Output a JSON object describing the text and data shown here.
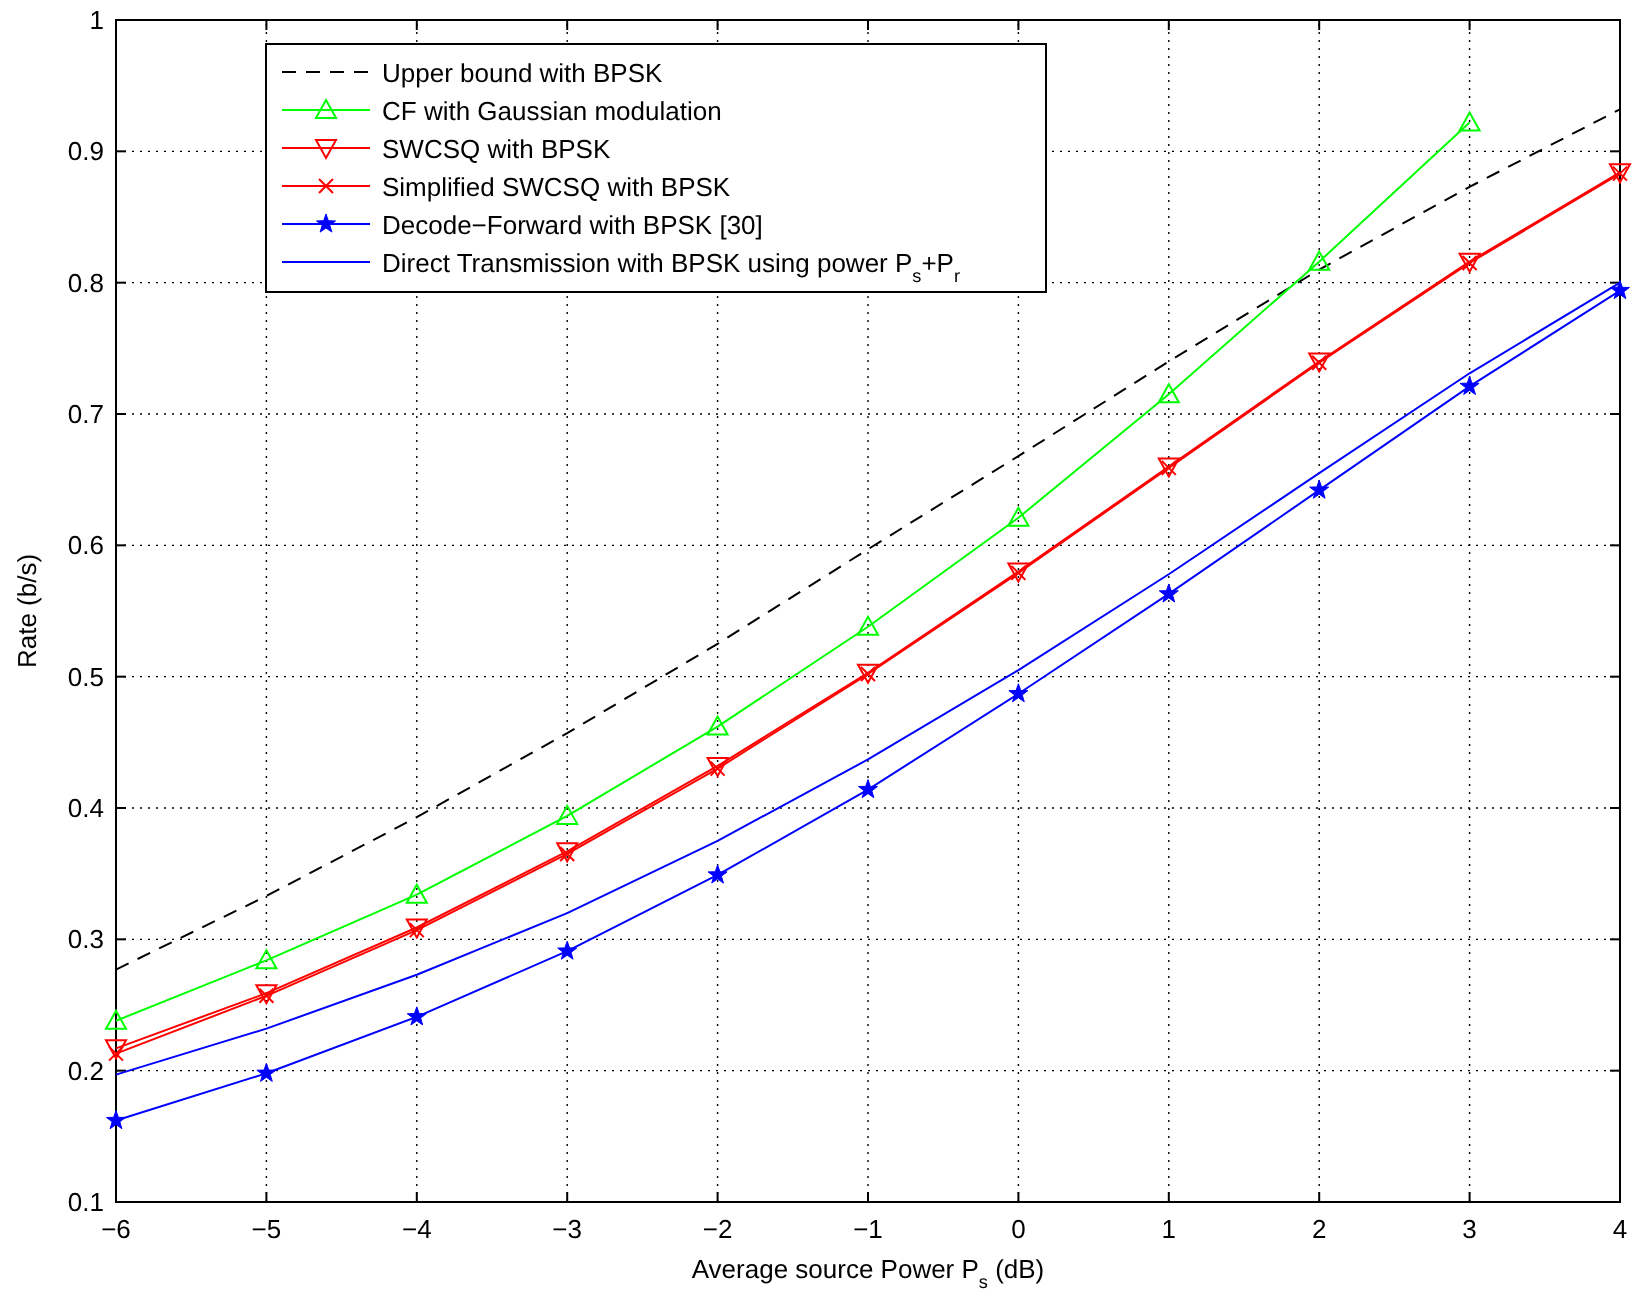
{
  "chart_data": {
    "type": "line",
    "xlabel": "Average source Power P$_{s}$ (dB)",
    "ylabel": "Rate (b/s)",
    "x": [
      -6,
      -5,
      -4,
      -3,
      -2,
      -1,
      0,
      1,
      2,
      3,
      4
    ],
    "xlim": [
      -6,
      4
    ],
    "xticks": [
      {
        "value": -6,
        "label": "−6"
      },
      {
        "value": -5,
        "label": "−5"
      },
      {
        "value": -4,
        "label": "−4"
      },
      {
        "value": -3,
        "label": "−3"
      },
      {
        "value": -2,
        "label": "−2"
      },
      {
        "value": -1,
        "label": "−1"
      },
      0,
      1,
      2,
      3,
      4
    ],
    "ylim": [
      0.1,
      1
    ],
    "yticks": [
      0.1,
      0.2,
      0.3,
      0.4,
      0.5,
      0.6,
      0.7,
      0.8,
      0.9,
      1
    ],
    "grid": true,
    "legend": "top left",
    "series": [
      {
        "name": "Upper bound with BPSK",
        "color": "#000000",
        "line_style": "dashed",
        "marker": "none",
        "values": [
          0.277,
          0.333,
          0.393,
          0.457,
          0.525,
          0.597,
          0.668,
          0.74,
          0.81,
          0.873,
          0.932
        ]
      },
      {
        "name": "CF with Gaussian modulation",
        "color": "#00ff00",
        "line_style": "solid",
        "marker": "triangle",
        "values": [
          0.238,
          0.284,
          0.334,
          0.394,
          0.462,
          0.538,
          0.621,
          0.715,
          0.816,
          0.922,
          null
        ]
      },
      {
        "name": "SWCSQ with BPSK",
        "color": "#ff0000",
        "line_style": "solid",
        "marker": "triangle-down",
        "values": [
          0.217,
          0.259,
          0.309,
          0.367,
          0.432,
          0.503,
          0.58,
          0.66,
          0.74,
          0.816,
          0.884
        ]
      },
      {
        "name": "Simplified SWCSQ with BPSK",
        "color": "#ff0000",
        "line_style": "solid",
        "marker": "cross",
        "values": [
          0.213,
          0.257,
          0.307,
          0.365,
          0.43,
          0.502,
          0.579,
          0.659,
          0.739,
          0.815,
          0.883
        ]
      },
      {
        "name": "Decode−Forward with BPSK [30]",
        "color": "#0000ff",
        "line_style": "solid",
        "marker": "star",
        "values": [
          0.162,
          0.198,
          0.241,
          0.291,
          0.349,
          0.414,
          0.487,
          0.563,
          0.642,
          0.721,
          0.794
        ]
      },
      {
        "name": "Direct Transmission with BPSK using power P$_{s}$+P$_{r}$",
        "color": "#0000ff",
        "line_style": "solid",
        "marker": "none",
        "values": [
          0.197,
          0.232,
          0.273,
          0.32,
          0.375,
          0.437,
          0.505,
          0.578,
          0.655,
          0.731,
          0.8
        ]
      }
    ]
  }
}
